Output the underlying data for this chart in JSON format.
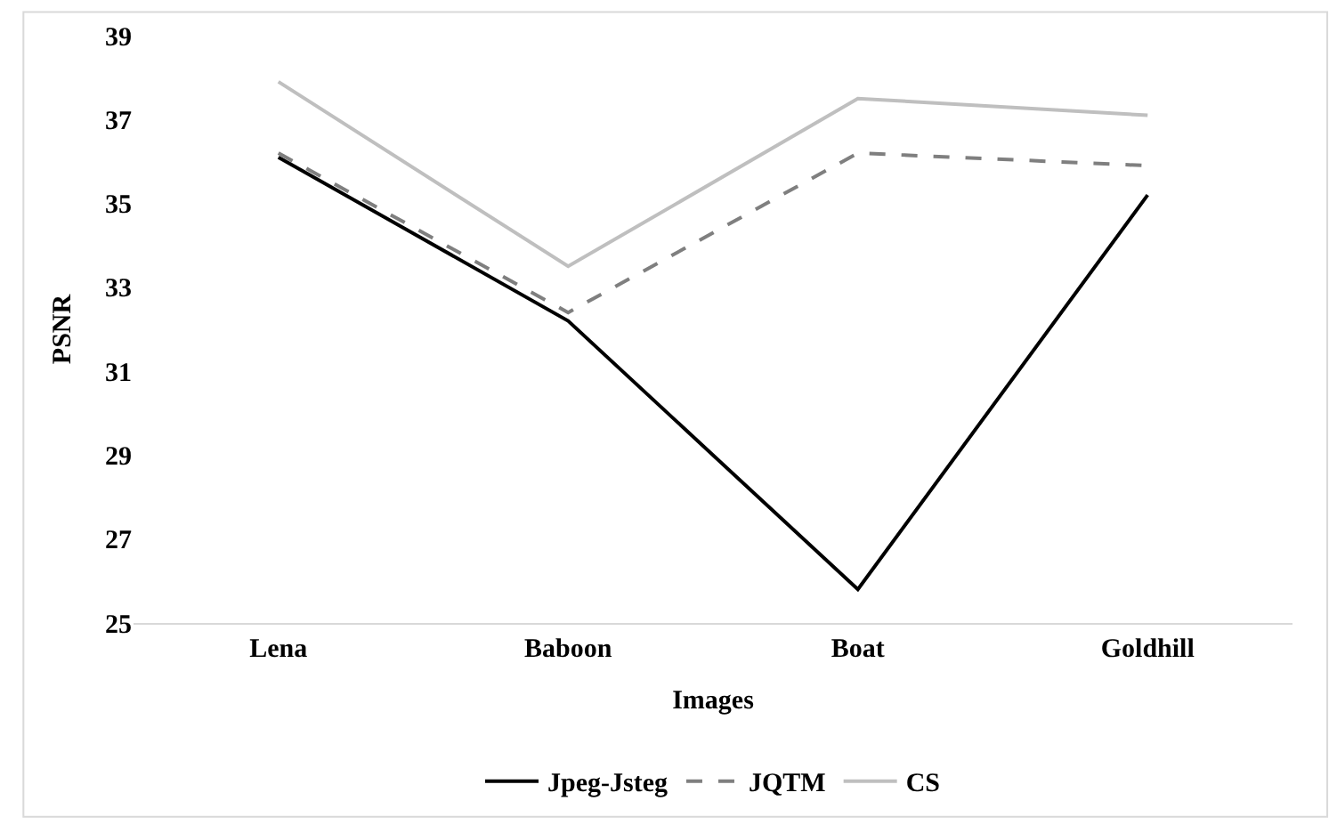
{
  "chart_data": {
    "type": "line",
    "xlabel": "Images",
    "ylabel": "PSNR",
    "categories": [
      "Lena",
      "Baboon",
      "Boat",
      "Goldhill"
    ],
    "ylim": [
      25,
      39
    ],
    "yticks": [
      25,
      27,
      29,
      31,
      33,
      35,
      37,
      39
    ],
    "grid": false,
    "legend": "bottom",
    "marker": "none",
    "series": [
      {
        "name": "Jpeg-Jsteg",
        "color": "#000000",
        "line_style": "solid",
        "values": [
          36.1,
          32.2,
          25.8,
          35.2
        ]
      },
      {
        "name": "JQTM",
        "color": "#7f7f7f",
        "line_style": "dashed",
        "values": [
          36.2,
          32.4,
          36.2,
          35.9
        ]
      },
      {
        "name": "CS",
        "color": "#bfbfbf",
        "line_style": "solid",
        "values": [
          37.9,
          33.5,
          37.5,
          37.1
        ]
      }
    ]
  }
}
